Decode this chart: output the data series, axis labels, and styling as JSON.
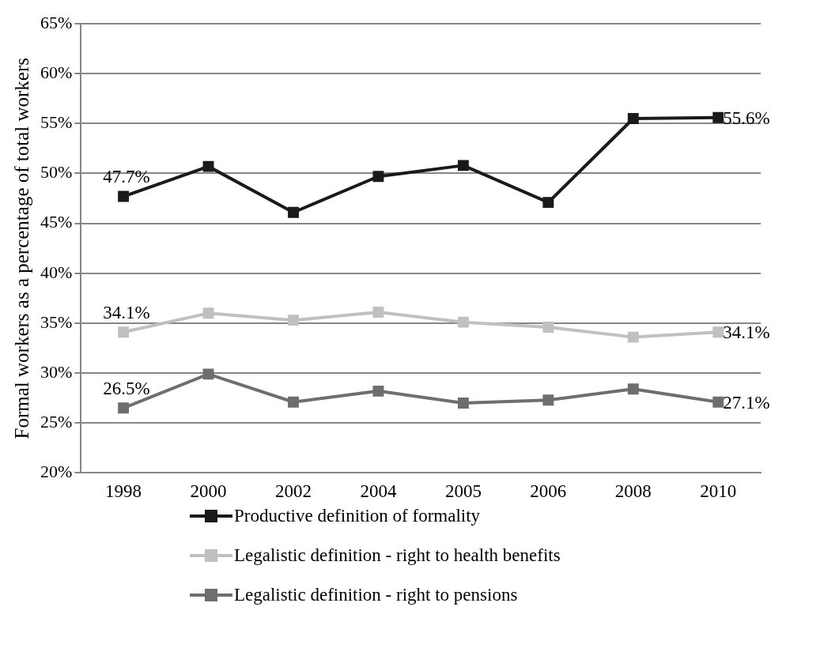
{
  "chart_data": {
    "type": "line",
    "ylabel": "Formal workers as a percentage of total workers",
    "categories": [
      "1998",
      "2000",
      "2002",
      "2004",
      "2005",
      "2006",
      "2008",
      "2010"
    ],
    "ylim": [
      20,
      65
    ],
    "yticks": [
      {
        "value": 20,
        "label": "20%"
      },
      {
        "value": 25,
        "label": "25%"
      },
      {
        "value": 30,
        "label": "30%"
      },
      {
        "value": 35,
        "label": "35%"
      },
      {
        "value": 40,
        "label": "40%"
      },
      {
        "value": 45,
        "label": "45%"
      },
      {
        "value": 50,
        "label": "50%"
      },
      {
        "value": 55,
        "label": "55%"
      },
      {
        "value": 60,
        "label": "60%"
      },
      {
        "value": 65,
        "label": "65%"
      }
    ],
    "grid": "y",
    "legend": "bottom",
    "marker": "square",
    "line_style": "solid",
    "series": [
      {
        "name": "Productive definition of formality",
        "color": "#1a1a1a",
        "values": [
          47.7,
          50.7,
          46.1,
          49.7,
          50.8,
          47.1,
          55.5,
          55.6
        ],
        "value_labels": [
          "47.7%",
          null,
          null,
          null,
          null,
          null,
          null,
          "55.6%"
        ]
      },
      {
        "name": "Legalistic definition - right to health benefits",
        "color": "#c0c0c0",
        "values": [
          34.1,
          36.0,
          35.3,
          36.1,
          35.1,
          34.6,
          33.6,
          34.1
        ],
        "value_labels": [
          "34.1%",
          null,
          null,
          null,
          null,
          null,
          null,
          "34.1%"
        ]
      },
      {
        "name": "Legalistic definition - right to pensions",
        "color": "#6e6e6e",
        "values": [
          26.5,
          29.9,
          27.1,
          28.2,
          27.0,
          27.3,
          28.4,
          27.1
        ],
        "value_labels": [
          "26.5%",
          null,
          null,
          null,
          null,
          null,
          null,
          "27.1%"
        ]
      }
    ]
  }
}
